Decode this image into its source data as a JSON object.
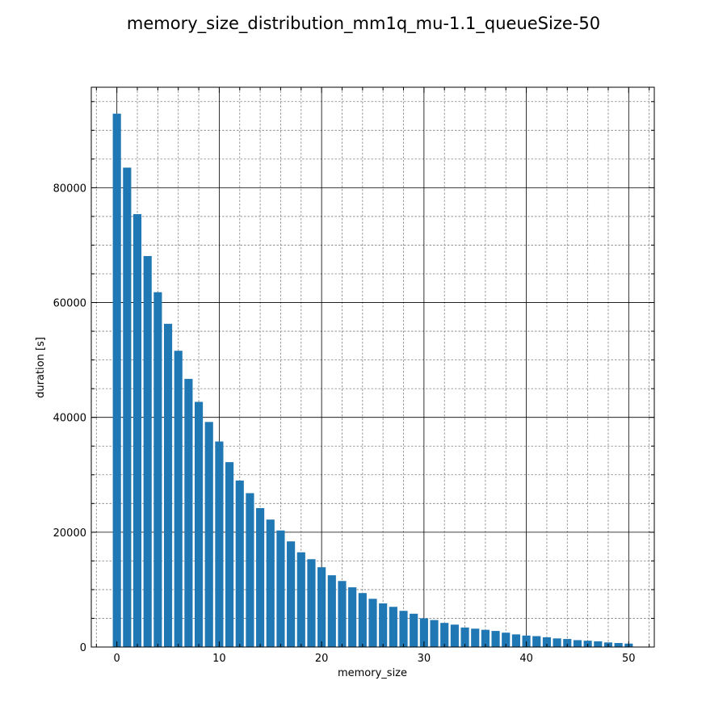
{
  "chart_data": {
    "type": "bar",
    "title": "memory_size_distribution_mm1q_mu-1.1_queueSize-50",
    "xlabel": "memory_size",
    "ylabel": "duration [s]",
    "xlim": [
      -2.5,
      52.5
    ],
    "ylim": [
      0,
      97500
    ],
    "x_major_ticks": [
      0,
      10,
      20,
      30,
      40,
      50
    ],
    "x_minor_step": 2,
    "y_major_ticks": [
      0,
      20000,
      40000,
      60000,
      80000
    ],
    "y_minor_step": 5000,
    "grid": {
      "major": true,
      "minor": true
    },
    "bar_color": "#1f77b4",
    "x": [
      0,
      1,
      2,
      3,
      4,
      5,
      6,
      7,
      8,
      9,
      10,
      11,
      12,
      13,
      14,
      15,
      16,
      17,
      18,
      19,
      20,
      21,
      22,
      23,
      24,
      25,
      26,
      27,
      28,
      29,
      30,
      31,
      32,
      33,
      34,
      35,
      36,
      37,
      38,
      39,
      40,
      41,
      42,
      43,
      44,
      45,
      46,
      47,
      48,
      49,
      50
    ],
    "values": [
      92900,
      83500,
      75400,
      68100,
      61800,
      56300,
      51600,
      46700,
      42700,
      39200,
      35800,
      32200,
      29000,
      26800,
      24200,
      22200,
      20300,
      18400,
      16500,
      15300,
      13900,
      12500,
      11500,
      10400,
      9400,
      8400,
      7600,
      7000,
      6300,
      5800,
      5000,
      4700,
      4200,
      3900,
      3400,
      3200,
      3000,
      2800,
      2500,
      2200,
      2000,
      1900,
      1700,
      1500,
      1400,
      1200,
      1100,
      1000,
      800,
      700,
      600
    ]
  }
}
